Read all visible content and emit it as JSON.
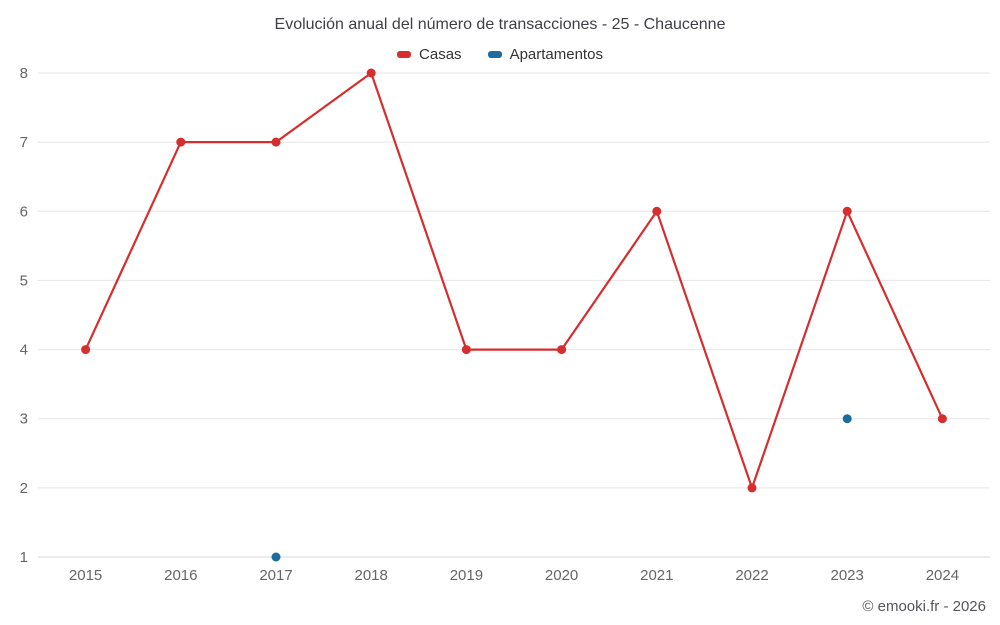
{
  "chart_data": {
    "type": "line",
    "title": "Evolución anual del número de transacciones - 25 - Chaucenne",
    "categories": [
      "2015",
      "2016",
      "2017",
      "2018",
      "2019",
      "2020",
      "2021",
      "2022",
      "2023",
      "2024"
    ],
    "series": [
      {
        "name": "Casas",
        "color": "#d62e2e",
        "show_line": true,
        "values": [
          4,
          7,
          7,
          8,
          4,
          4,
          6,
          2,
          6,
          3
        ]
      },
      {
        "name": "Apartamentos",
        "color": "#1a6d9e",
        "show_line": false,
        "values": [
          null,
          null,
          1,
          null,
          null,
          null,
          null,
          null,
          3,
          null
        ]
      }
    ],
    "xlabel": "",
    "ylabel": "",
    "ylim": [
      1,
      8
    ],
    "yticks": [
      1,
      2,
      3,
      4,
      5,
      6,
      7,
      8
    ],
    "grid": true,
    "legend_position": "top",
    "gridline_color": "#e6e6e6",
    "axis_line_color": "#d8d8d8",
    "axis_label_color": "#666666"
  },
  "footer": {
    "copyright": "© emooki.fr - 2026"
  }
}
